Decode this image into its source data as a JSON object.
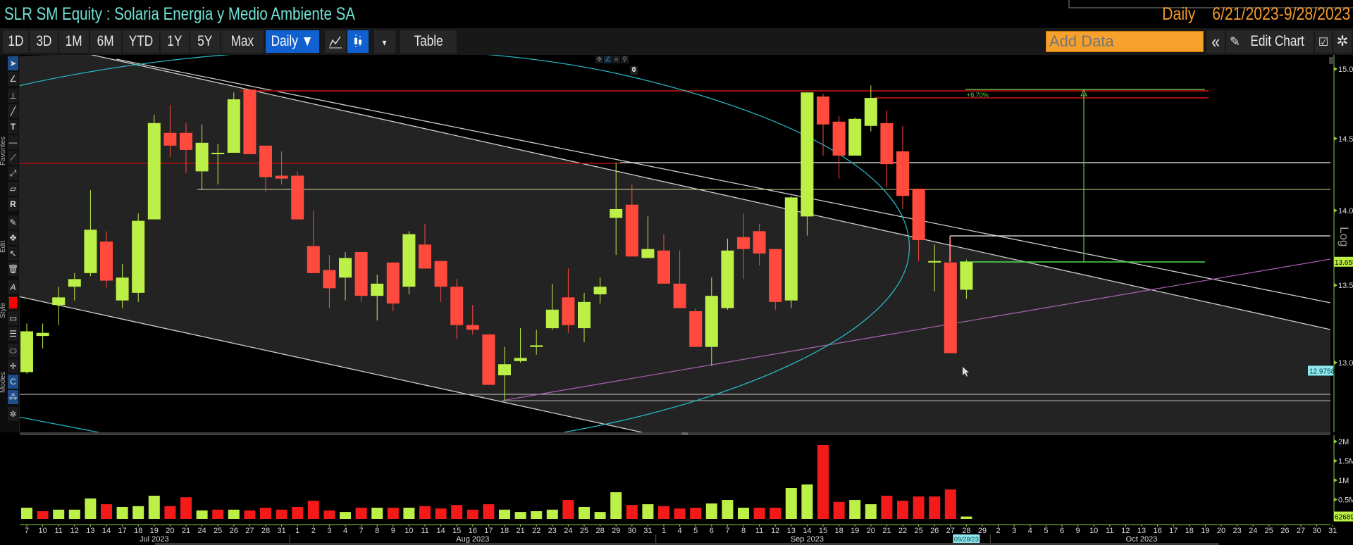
{
  "window": {
    "title": "SLR SM Equity : Solaria Energia y Medio Ambiente SA",
    "frequency": "Daily",
    "date_range": "6/21/2023-9/28/2023"
  },
  "toolbar": {
    "periods": [
      "1D",
      "3D",
      "1M",
      "6M",
      "YTD",
      "1Y",
      "5Y",
      "Max"
    ],
    "frequency_button": "Daily ▼",
    "line_chart_icon": "line-chart-icon",
    "candle_chart_icon": "candlestick-icon",
    "dropdown_arrow": "▾",
    "table_label": "Table",
    "add_data_placeholder": "Add Data",
    "collapse_label": "«",
    "edit_chart_label": "Edit Chart",
    "colors": {
      "selected": "#1060d0",
      "add_data_bg": "#f7a12c"
    }
  },
  "left_tools": {
    "sections": [
      "Favorites",
      "Edit",
      "Style",
      "Modes"
    ],
    "icons": [
      "cursor-icon",
      "pencil-dropdown-icon",
      "percent-measure-icon",
      "line-tool-icon",
      "text-tool-icon",
      "horizontal-line-icon",
      "trend-line-icon",
      "ray-icon",
      "channel-icon",
      "retracement-icon",
      "draw-icon",
      "move-icon",
      "select-add-icon",
      "trash-icon",
      "font-icon",
      "color-swatch-icon",
      "fill-icon",
      "line-style-icon",
      "lasso-icon",
      "crosshair-icon",
      "magnet-icon",
      "layers-icon",
      "gear-icon"
    ]
  },
  "overlay_tools": {
    "icons": [
      "move-icon",
      "draw-icon",
      "list-icon",
      "zoom-icon"
    ],
    "count": "0"
  },
  "annotations": {
    "percent_change": "+8.70%",
    "log_label": "Log"
  },
  "chart_data": [
    {
      "type": "candlestick",
      "scale": "log",
      "ylim": [
        12.75,
        15.1
      ],
      "y_ticks": [
        "15.00",
        "14.50",
        "14.00",
        "13.50",
        "13.00"
      ],
      "last_price_label": "13.655",
      "cursor_price_label": "12.9758",
      "colors": {
        "up": "#bdf047",
        "down": "#ff4a3d"
      },
      "dates": [
        "7/7",
        "7/10",
        "7/11",
        "7/12",
        "7/13",
        "7/14",
        "7/17",
        "7/18",
        "7/19",
        "7/20",
        "7/21",
        "7/24",
        "7/25",
        "7/26",
        "7/27",
        "7/28",
        "7/31",
        "8/1",
        "8/2",
        "8/3",
        "8/4",
        "8/7",
        "8/8",
        "8/9",
        "8/10",
        "8/11",
        "8/14",
        "8/15",
        "8/16",
        "8/17",
        "8/18",
        "8/21",
        "8/22",
        "8/23",
        "8/24",
        "8/25",
        "8/28",
        "8/29",
        "8/30",
        "8/31",
        "9/1",
        "9/4",
        "9/5",
        "9/6",
        "9/7",
        "9/8",
        "9/11",
        "9/12",
        "9/13",
        "9/14",
        "9/15",
        "9/18",
        "9/19",
        "9/20",
        "9/21",
        "9/22",
        "9/25",
        "9/26",
        "9/27",
        "9/28"
      ],
      "ohlc": [
        [
          12.94,
          13.25,
          12.93,
          13.2
        ],
        [
          13.17,
          13.25,
          13.09,
          13.19
        ],
        [
          13.37,
          13.49,
          13.24,
          13.42
        ],
        [
          13.49,
          13.58,
          13.4,
          13.54
        ],
        [
          13.58,
          14.14,
          13.56,
          13.87
        ],
        [
          13.79,
          13.86,
          13.48,
          13.53
        ],
        [
          13.4,
          13.64,
          13.35,
          13.55
        ],
        [
          13.45,
          13.98,
          13.39,
          13.93
        ],
        [
          13.94,
          14.67,
          13.94,
          14.61
        ],
        [
          14.54,
          14.74,
          14.37,
          14.45
        ],
        [
          14.54,
          14.61,
          14.26,
          14.42
        ],
        [
          14.27,
          14.6,
          14.14,
          14.47
        ],
        [
          14.39,
          14.46,
          14.18,
          14.4
        ],
        [
          14.4,
          14.83,
          14.4,
          14.78
        ],
        [
          14.85,
          14.85,
          14.39,
          14.39
        ],
        [
          14.45,
          14.45,
          14.13,
          14.23
        ],
        [
          14.24,
          14.41,
          14.18,
          14.22
        ],
        [
          14.24,
          14.27,
          13.94,
          13.94
        ],
        [
          13.76,
          14.0,
          13.58,
          13.58
        ],
        [
          13.6,
          13.7,
          13.35,
          13.48
        ],
        [
          13.55,
          13.72,
          13.4,
          13.68
        ],
        [
          13.72,
          13.72,
          13.39,
          13.43
        ],
        [
          13.43,
          13.57,
          13.27,
          13.51
        ],
        [
          13.65,
          13.65,
          13.33,
          13.38
        ],
        [
          13.49,
          13.86,
          13.44,
          13.84
        ],
        [
          13.77,
          13.91,
          13.61,
          13.61
        ],
        [
          13.66,
          13.66,
          13.39,
          13.49
        ],
        [
          13.49,
          13.54,
          13.15,
          13.24
        ],
        [
          13.24,
          13.37,
          13.18,
          13.21
        ],
        [
          13.18,
          13.18,
          12.86,
          12.86
        ],
        [
          12.92,
          13.1,
          12.76,
          12.99
        ],
        [
          13.01,
          13.22,
          13.0,
          13.03
        ],
        [
          13.1,
          13.21,
          13.05,
          13.11
        ],
        [
          13.22,
          13.51,
          13.21,
          13.34
        ],
        [
          13.42,
          13.61,
          13.19,
          13.24
        ],
        [
          13.22,
          13.45,
          13.13,
          13.39
        ],
        [
          13.44,
          13.55,
          13.38,
          13.49
        ],
        [
          13.95,
          14.33,
          13.7,
          14.01
        ],
        [
          14.04,
          14.18,
          13.69,
          13.69
        ],
        [
          13.68,
          13.96,
          13.68,
          13.74
        ],
        [
          13.73,
          13.84,
          13.51,
          13.51
        ],
        [
          13.51,
          13.73,
          13.35,
          13.35
        ],
        [
          13.33,
          13.35,
          13.1,
          13.1
        ],
        [
          13.1,
          13.55,
          12.98,
          13.43
        ],
        [
          13.35,
          13.81,
          13.34,
          13.73
        ],
        [
          13.82,
          13.98,
          13.54,
          13.74
        ],
        [
          13.86,
          13.91,
          13.63,
          13.71
        ],
        [
          13.74,
          13.74,
          13.34,
          13.39
        ],
        [
          13.4,
          14.1,
          13.35,
          14.09
        ],
        [
          13.96,
          14.83,
          13.83,
          14.83
        ],
        [
          14.8,
          14.82,
          14.38,
          14.6
        ],
        [
          14.62,
          14.66,
          14.22,
          14.38
        ],
        [
          14.38,
          14.65,
          14.38,
          14.64
        ],
        [
          14.59,
          14.88,
          14.55,
          14.79
        ],
        [
          14.61,
          14.7,
          14.16,
          14.32
        ],
        [
          14.41,
          14.59,
          14.01,
          14.1
        ],
        [
          14.15,
          14.15,
          13.66,
          13.8
        ],
        [
          13.65,
          13.77,
          13.46,
          13.66
        ],
        [
          13.65,
          13.82,
          13.06,
          13.06
        ],
        [
          13.47,
          13.67,
          13.41,
          13.655
        ]
      ]
    },
    {
      "type": "bar",
      "y_ticks": [
        "2M",
        "1.5M",
        "1M",
        "0.5M"
      ],
      "last_volume_label": "62689",
      "volumes": [
        290000,
        200000,
        240000,
        240000,
        530000,
        380000,
        310000,
        330000,
        600000,
        330000,
        560000,
        220000,
        240000,
        240000,
        220000,
        290000,
        240000,
        310000,
        470000,
        220000,
        180000,
        290000,
        290000,
        290000,
        290000,
        330000,
        270000,
        360000,
        240000,
        380000,
        240000,
        180000,
        200000,
        240000,
        490000,
        310000,
        180000,
        690000,
        360000,
        380000,
        330000,
        270000,
        290000,
        400000,
        490000,
        290000,
        290000,
        290000,
        800000,
        890000,
        1910000,
        440000,
        490000,
        380000,
        600000,
        470000,
        580000,
        580000,
        760000,
        62689
      ]
    }
  ],
  "x_axis": {
    "day_labels": [
      "7",
      "10",
      "11",
      "12",
      "13",
      "14",
      "17",
      "18",
      "19",
      "20",
      "21",
      "24",
      "25",
      "26",
      "27",
      "28",
      "31",
      "1",
      "2",
      "3",
      "4",
      "7",
      "8",
      "9",
      "10",
      "11",
      "14",
      "15",
      "16",
      "17",
      "18",
      "21",
      "22",
      "23",
      "24",
      "25",
      "28",
      "29",
      "30",
      "31",
      "1",
      "4",
      "5",
      "6",
      "7",
      "8",
      "11",
      "12",
      "13",
      "14",
      "15",
      "18",
      "19",
      "20",
      "21",
      "22",
      "25",
      "26",
      "27",
      "28",
      "29",
      "2",
      "3",
      "4",
      "5",
      "6",
      "9",
      "10",
      "11",
      "12",
      "13",
      "16",
      "17",
      "18",
      "19",
      "20",
      "23",
      "24",
      "25",
      "26",
      "27",
      "30",
      "31"
    ],
    "months": [
      {
        "label": "Jul 2023",
        "at": 8
      },
      {
        "label": "Aug 2023",
        "at": 28
      },
      {
        "label": "Sep 2023",
        "at": 49
      },
      {
        "label": "Oct 2023",
        "at": 70
      }
    ],
    "highlight_date": "09/28/23"
  }
}
